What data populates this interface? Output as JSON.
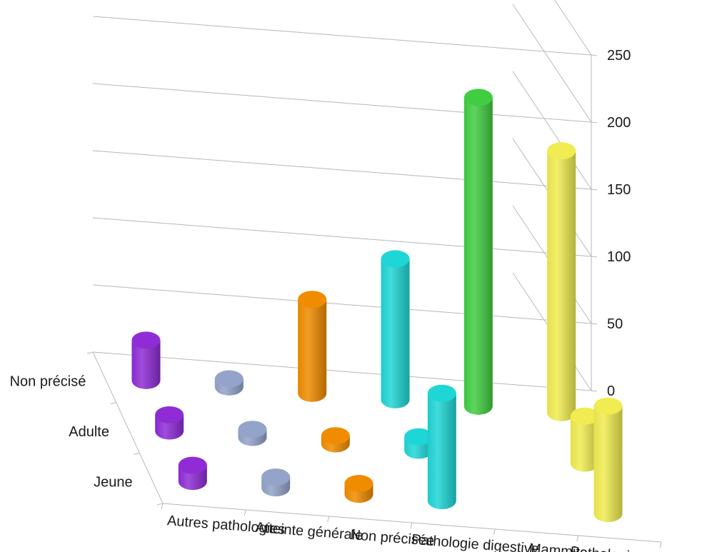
{
  "chart_data": {
    "type": "bar",
    "title": "",
    "xlabel": "",
    "ylabel": "",
    "ylim": [
      0,
      250
    ],
    "grid": true,
    "z_ticks": [
      "0",
      "50",
      "100",
      "150",
      "200",
      "250"
    ],
    "categories": [
      "Autres pathologies",
      "Atteinte générale",
      "Non précisée",
      "Pathologie digestive",
      "Mammite",
      "Pathologie respiratoire"
    ],
    "depth_categories": [
      "Jeune",
      "Adulte",
      "Non précisé"
    ],
    "values": [
      [
        12,
        12,
        30
      ],
      [
        8,
        6,
        6
      ],
      [
        8,
        6,
        70
      ],
      [
        80,
        10,
        105
      ],
      [
        0,
        0,
        230
      ],
      [
        80,
        35,
        195
      ]
    ],
    "colors": [
      "#8f2cd6",
      "#93a3c9",
      "#f08c00",
      "#1fd6d6",
      "#41cd41",
      "#f0ec51"
    ]
  }
}
